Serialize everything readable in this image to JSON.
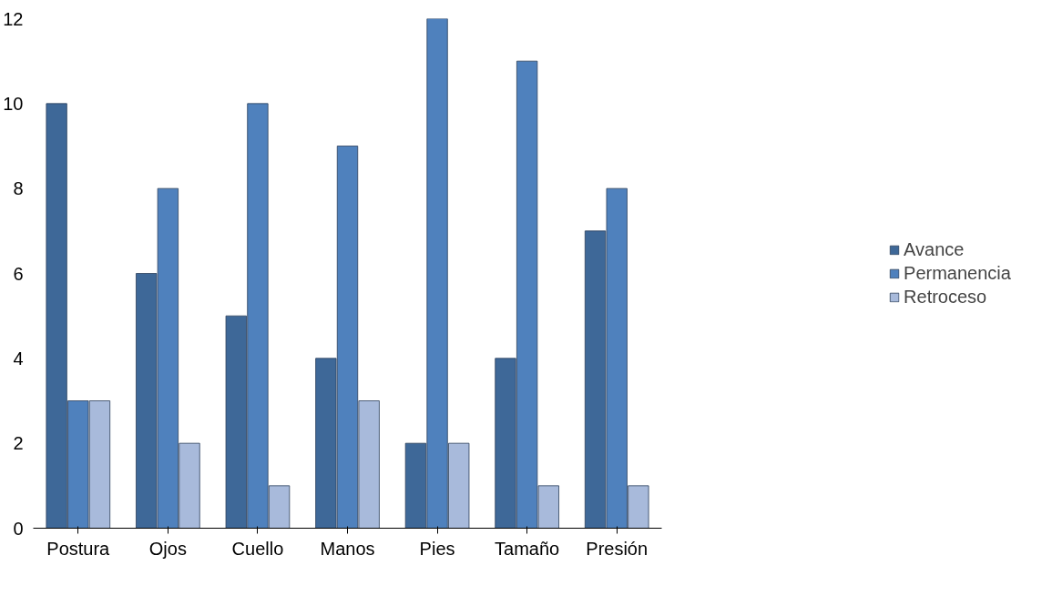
{
  "chart_data": {
    "type": "bar",
    "categories": [
      "Postura",
      "Ojos",
      "Cuello",
      "Manos",
      "Pies",
      "Tamaño",
      "Presión"
    ],
    "series": [
      {
        "name": "Avance",
        "color": "#3e6898",
        "values": [
          10,
          6,
          5,
          4,
          2,
          4,
          7
        ]
      },
      {
        "name": "Permanencia",
        "color": "#4f81bd",
        "values": [
          3,
          8,
          10,
          9,
          12,
          11,
          8
        ]
      },
      {
        "name": "Retroceso",
        "color": "#a8badb",
        "values": [
          3,
          2,
          1,
          3,
          2,
          1,
          1
        ]
      }
    ],
    "ylim": [
      0,
      12
    ],
    "yticks": [
      0,
      2,
      4,
      6,
      8,
      10,
      12
    ],
    "grid": false,
    "legend": "right"
  }
}
